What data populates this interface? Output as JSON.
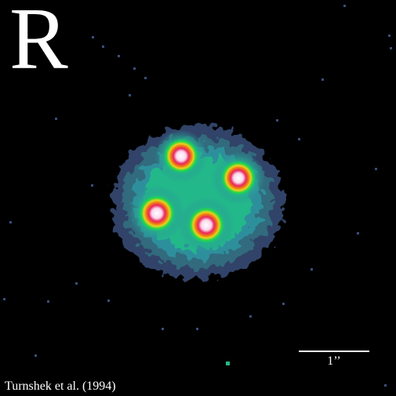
{
  "image": {
    "band_label": "R",
    "scale_bar_label": "1’’",
    "credit": "Turnshek et al. (1994)",
    "subject": "quadruply-imaged quasar (four point sources in false color)",
    "colormap": [
      "#000000",
      "#3a4f7a",
      "#2f8f9c",
      "#22b88a",
      "#1fd64a",
      "#e8d21e",
      "#f07a12",
      "#e8265e",
      "#f79ad0",
      "#ffffff"
    ],
    "components": [
      {
        "id": "A",
        "position": "upper"
      },
      {
        "id": "B",
        "position": "right"
      },
      {
        "id": "C",
        "position": "lower"
      },
      {
        "id": "D",
        "position": "left"
      }
    ]
  }
}
